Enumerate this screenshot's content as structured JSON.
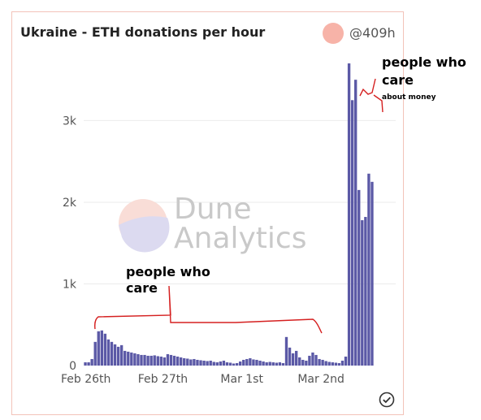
{
  "header": {
    "title": "Ukraine - ETH donations per hour",
    "legend_label": "@409h",
    "legend_color": "#f7b3a8"
  },
  "watermark": {
    "line1": "Dune",
    "line2": "Analytics"
  },
  "annotations": {
    "top_line1": "people who",
    "top_line2": "care",
    "top_line3": "about money",
    "bottom_line1": "people who",
    "bottom_line2": "care"
  },
  "chart_data": {
    "type": "bar",
    "title": "Ukraine - ETH donations per hour",
    "series": [
      {
        "name": "@409h",
        "color": "#5b59a6",
        "values": [
          40,
          40,
          80,
          290,
          420,
          430,
          390,
          320,
          290,
          260,
          230,
          250,
          180,
          170,
          160,
          150,
          140,
          130,
          130,
          120,
          120,
          125,
          115,
          110,
          100,
          140,
          130,
          120,
          110,
          100,
          90,
          85,
          75,
          80,
          70,
          65,
          60,
          55,
          60,
          45,
          40,
          50,
          60,
          40,
          35,
          25,
          30,
          50,
          70,
          80,
          90,
          75,
          70,
          60,
          50,
          40,
          45,
          40,
          35,
          40,
          30,
          350,
          220,
          150,
          180,
          100,
          70,
          60,
          120,
          160,
          130,
          80,
          70,
          55,
          45,
          40,
          35,
          30,
          60,
          110,
          3700,
          3250,
          3500,
          2150,
          1780,
          1820,
          2350,
          2250
        ]
      }
    ],
    "ylim": [
      0,
      3800
    ],
    "y_ticks": [
      {
        "value": 0,
        "label": "0"
      },
      {
        "value": 1000,
        "label": "1k"
      },
      {
        "value": 2000,
        "label": "2k"
      },
      {
        "value": 3000,
        "label": "3k"
      }
    ],
    "x_ticks": [
      {
        "index": 0,
        "label": "Feb 26th"
      },
      {
        "index": 24,
        "label": "Feb 27th"
      },
      {
        "index": 48,
        "label": "Mar 1st"
      },
      {
        "index": 72,
        "label": "Mar 2nd"
      }
    ],
    "grid": true
  }
}
